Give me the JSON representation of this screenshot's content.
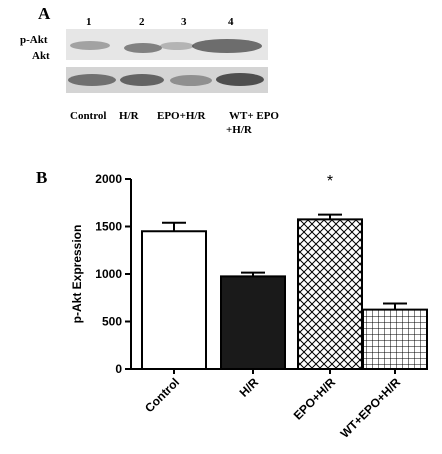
{
  "panelA": {
    "label": "A",
    "lanes": [
      "1",
      "2",
      "3",
      "4"
    ],
    "row_labels": [
      "p-Akt",
      "Akt"
    ],
    "conditions": [
      "Control",
      "H/R",
      "EPO+H/R",
      "WT+ EPO",
      "+H/R"
    ]
  },
  "panelB": {
    "label": "B"
  },
  "chart_data": {
    "type": "bar",
    "categories": [
      "Control",
      "H/R",
      "EPO+H/R",
      "WT+EPO+H/R"
    ],
    "values": [
      1450,
      975,
      1575,
      625
    ],
    "errors": [
      90,
      40,
      50,
      65
    ],
    "fills": [
      "white",
      "black",
      "crosshatch",
      "grid"
    ],
    "ylabel": "p-Akt Expression",
    "ylim": [
      0,
      2000
    ],
    "yticks": [
      0,
      500,
      1000,
      1500,
      2000
    ],
    "annotations": [
      {
        "category": "EPO+H/R",
        "text": "*"
      }
    ]
  }
}
